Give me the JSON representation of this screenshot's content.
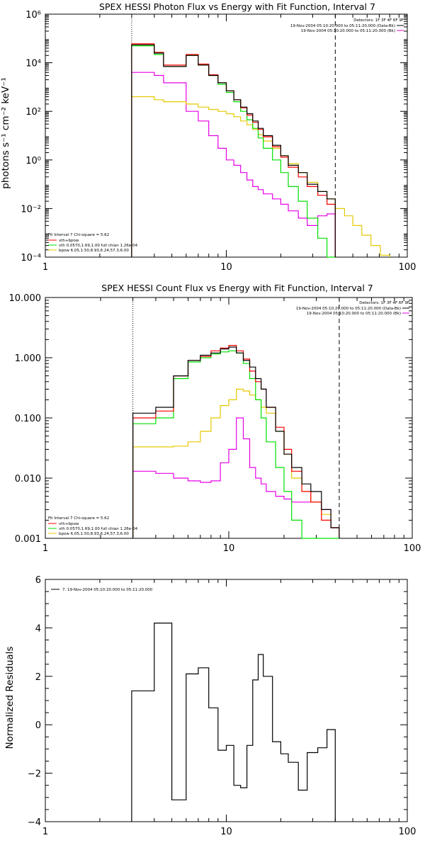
{
  "colors": {
    "data": "#000000",
    "total_fit": "#ff0000",
    "vth": "#00e000",
    "bpow": "#e6c800",
    "background": "#e600e6"
  },
  "chart_data": [
    {
      "type": "line",
      "title": "SPEX HESSI Photon Flux vs Energy with Fit Function, Interval 7",
      "xlabel": "",
      "ylabel": "photons s⁻¹ cm⁻² keV⁻¹",
      "xscale": "log",
      "yscale": "log",
      "xlim": [
        1,
        100
      ],
      "ylim": [
        0.0001,
        1000000
      ],
      "x_ticks": [
        1,
        10,
        100
      ],
      "x_tick_labels": [
        "1",
        "10",
        "100"
      ],
      "y_ticks": [
        0.0001,
        0.01,
        1,
        100,
        10000,
        1000000
      ],
      "y_tick_labels": [
        "10⁻⁴",
        "10⁻²",
        "10⁰",
        "10²",
        "10⁴",
        "10⁶"
      ],
      "dotted_line_x": 3,
      "dashed_line_x": 40,
      "legend_top_right": [
        "Detectors: 1F 3F 4F 6F 9F",
        "19-Nov-2004 05:10:20.000 to 05:11:20.000 (Data-Bk)",
        "19-Nov-2004 05:10:20.000 to 05:11:20.000 (Bk)"
      ],
      "legend_bottom_left": [
        "Fit Interval 7   Chi-square = 5.62",
        "vth+bpow",
        "vth 0.0570,1.69,1.00  full chian 1.26e-04",
        "bpow 6.05,1.50,8.93,6.24,57.3,6.00"
      ],
      "edges": [
        3,
        3.5,
        4,
        4.5,
        5,
        6,
        7,
        8,
        9,
        10,
        11,
        12,
        13,
        14,
        15,
        16,
        18,
        20,
        22,
        25,
        28,
        32,
        36,
        40,
        45,
        50,
        56,
        63,
        71,
        80
      ],
      "series": [
        {
          "name": "Data-Bk",
          "values": [
            55000,
            55000,
            25000,
            7000,
            7000,
            20000,
            8000,
            3000,
            1500,
            700,
            300,
            150,
            80,
            40,
            20,
            10,
            4,
            1.5,
            0.6,
            0.3,
            0.1,
            0.05,
            0.025,
            null,
            null,
            null,
            null,
            null,
            null
          ]
        },
        {
          "name": "vth+bpow",
          "values": [
            60000,
            60000,
            27000,
            8000,
            8000,
            22000,
            8800,
            3200,
            1500,
            700,
            300,
            140,
            70,
            35,
            18,
            9,
            3.5,
            1.3,
            0.5,
            0.2,
            0.08,
            0.035,
            0.015,
            null,
            null,
            null,
            null,
            null,
            null
          ]
        },
        {
          "name": "vth",
          "values": [
            50000,
            50000,
            22000,
            7000,
            7000,
            20000,
            8000,
            3000,
            1300,
            600,
            250,
            100,
            45,
            20,
            8,
            3,
            1,
            0.3,
            0.08,
            0.02,
            0.004,
            0.0006,
            0.0001,
            null,
            null,
            null,
            null,
            null,
            null
          ]
        },
        {
          "name": "bpow",
          "values": [
            400,
            400,
            300,
            250,
            250,
            200,
            150,
            120,
            100,
            80,
            60,
            40,
            28,
            18,
            11,
            6,
            3,
            1.5,
            0.7,
            0.3,
            0.12,
            0.05,
            0.025,
            0.01,
            0.005,
            0.002,
            0.0008,
            0.0003,
            0.00012
          ]
        },
        {
          "name": "Bk",
          "values": [
            4000,
            4000,
            3000,
            1500,
            1500,
            100,
            40,
            10,
            3,
            1,
            0.6,
            0.3,
            0.15,
            0.08,
            0.06,
            0.04,
            0.025,
            0.015,
            0.008,
            0.004,
            0.002,
            0.005,
            0.006,
            null,
            null,
            null,
            null,
            null,
            null
          ]
        }
      ]
    },
    {
      "type": "line",
      "title": "SPEX HESSI Count Flux vs Energy with Fit Function, Interval 7",
      "xlabel": "",
      "ylabel": "",
      "xscale": "log",
      "yscale": "log",
      "xlim": [
        1,
        100
      ],
      "ylim": [
        0.001,
        10
      ],
      "x_ticks": [
        1,
        10,
        100
      ],
      "x_tick_labels": [
        "1",
        "10",
        "100"
      ],
      "y_ticks": [
        0.001,
        0.01,
        0.1,
        1,
        10
      ],
      "y_tick_labels": [
        "0.001",
        "0.010",
        "0.100",
        "1.000",
        "10.000"
      ],
      "dotted_line_x": 3,
      "dashed_line_x": 40,
      "legend_top_right": [
        "Detectors: 1F 3F 4F 6F 9F",
        "19-Nov-2004 05:10:20.000 to 05:11:20.000 (Data-Bk)",
        "19-Nov-2004 05:10:20.000 to 05:11:20.000 (Bk)"
      ],
      "legend_bottom_left": [
        "Fit Interval 7   Chi-square = 5.62",
        "vth+bpow",
        "vth 0.0570,1.69,1.00  full chian 1.26e-04",
        "bpow 6.05,1.50,8.93,6.24,57.3,6.00"
      ],
      "edges": [
        3,
        4,
        5,
        6,
        7,
        8,
        9,
        10,
        11,
        12,
        13,
        14,
        15,
        16,
        18,
        20,
        22,
        25,
        28,
        32,
        36,
        40
      ],
      "series": [
        {
          "name": "Data-Bk",
          "values": [
            0.12,
            0.15,
            0.5,
            0.9,
            1.1,
            1.2,
            1.4,
            1.5,
            1.2,
            0.9,
            0.7,
            0.45,
            0.3,
            0.15,
            0.06,
            0.025,
            0.015,
            0.008,
            0.006,
            0.003,
            0.0015
          ]
        },
        {
          "name": "vth+bpow",
          "values": [
            0.1,
            0.13,
            0.5,
            0.9,
            1.05,
            1.3,
            1.45,
            1.6,
            1.3,
            0.95,
            0.6,
            0.4,
            0.3,
            0.15,
            0.07,
            0.03,
            0.013,
            0.006,
            0.004,
            0.002,
            0.0015
          ]
        },
        {
          "name": "vth",
          "values": [
            0.08,
            0.1,
            0.45,
            0.85,
            1.0,
            1.15,
            1.25,
            1.3,
            1.2,
            0.8,
            0.45,
            0.2,
            0.1,
            0.04,
            0.015,
            0.006,
            0.002,
            0.0009,
            0.0008,
            0.0008,
            0.0008
          ]
        },
        {
          "name": "bpow",
          "values": [
            0.033,
            0.033,
            0.034,
            0.04,
            0.06,
            0.1,
            0.16,
            0.2,
            0.3,
            0.28,
            0.24,
            0.2,
            0.15,
            0.12,
            0.06,
            0.025,
            0.01,
            0.006,
            0.004,
            0.0025,
            0.0015
          ]
        },
        {
          "name": "Bk",
          "values": [
            0.013,
            0.012,
            0.01,
            0.009,
            0.0085,
            0.009,
            0.018,
            0.03,
            0.1,
            0.045,
            0.015,
            0.01,
            0.008,
            0.006,
            0.005,
            0.0045,
            0.004,
            0.004,
            0.004,
            0.003,
            0.0015
          ]
        }
      ]
    },
    {
      "type": "line",
      "title": "",
      "xlabel": "",
      "ylabel": "Normalized Residuals",
      "xscale": "log",
      "yscale": "linear",
      "xlim": [
        1,
        100
      ],
      "ylim": [
        -4,
        6
      ],
      "x_ticks": [
        1,
        10,
        100
      ],
      "x_tick_labels": [
        "1",
        "10",
        "100"
      ],
      "y_ticks": [
        -4,
        -2,
        0,
        2,
        4,
        6
      ],
      "y_tick_labels": [
        "−4",
        "−2",
        "0",
        "2",
        "4",
        "6"
      ],
      "legend_top_left": [
        "7. 19-Nov-2004 05:10:20.000 to 05:11:20.000"
      ],
      "edges": [
        3,
        4,
        5,
        6,
        7,
        8,
        9,
        10,
        11,
        12,
        13,
        14,
        15,
        16,
        18,
        20,
        22,
        25,
        28,
        32,
        36,
        40
      ],
      "series": [
        {
          "name": "7. 19-Nov-2004 05:10:20.000 to 05:11:20.000",
          "values": [
            1.4,
            4.2,
            -3.1,
            2.1,
            2.35,
            0.7,
            -1.05,
            -0.85,
            -2.5,
            -2.6,
            -0.85,
            1.85,
            2.9,
            2.0,
            -0.7,
            -1.2,
            -1.55,
            -2.7,
            -1.15,
            -0.95,
            -0.2
          ]
        }
      ]
    }
  ]
}
